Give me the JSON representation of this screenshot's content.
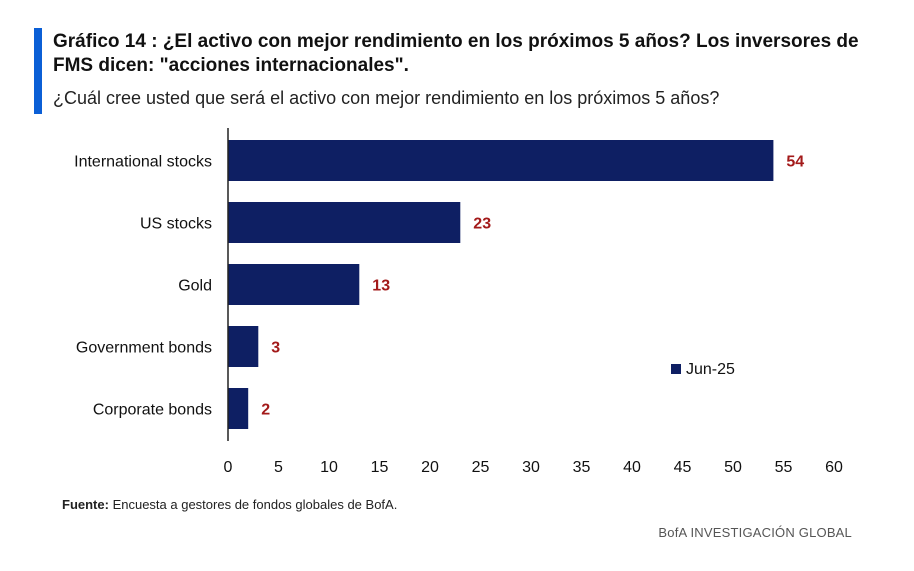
{
  "header": {
    "title": "Gráfico 14 : ¿El activo con mejor rendimiento en los próximos 5 años? Los inversores de FMS dicen: \"acciones internacionales\".",
    "subtitle": "¿Cuál cree usted que será el activo con mejor rendimiento en los próximos 5 años?"
  },
  "footer": {
    "source_label": "Fuente:",
    "source_text": " Encuesta a gestores de fondos globales de BofA.",
    "brand": "BofA INVESTIGACIÓN GLOBAL"
  },
  "colors": {
    "bar": "#0e1f63",
    "label": "#a31a1a",
    "accent": "#0b5fd6"
  },
  "chart_data": {
    "type": "bar",
    "orientation": "horizontal",
    "categories": [
      "International stocks",
      "US stocks",
      "Gold",
      "Government bonds",
      "Corporate bonds"
    ],
    "series": [
      {
        "name": "Jun-25",
        "values": [
          54,
          23,
          13,
          3,
          2
        ]
      }
    ],
    "xlim": [
      0,
      60
    ],
    "xticks": [
      0,
      5,
      10,
      15,
      20,
      25,
      30,
      35,
      40,
      45,
      50,
      55,
      60
    ],
    "grid": false,
    "legend": "right-middle"
  }
}
